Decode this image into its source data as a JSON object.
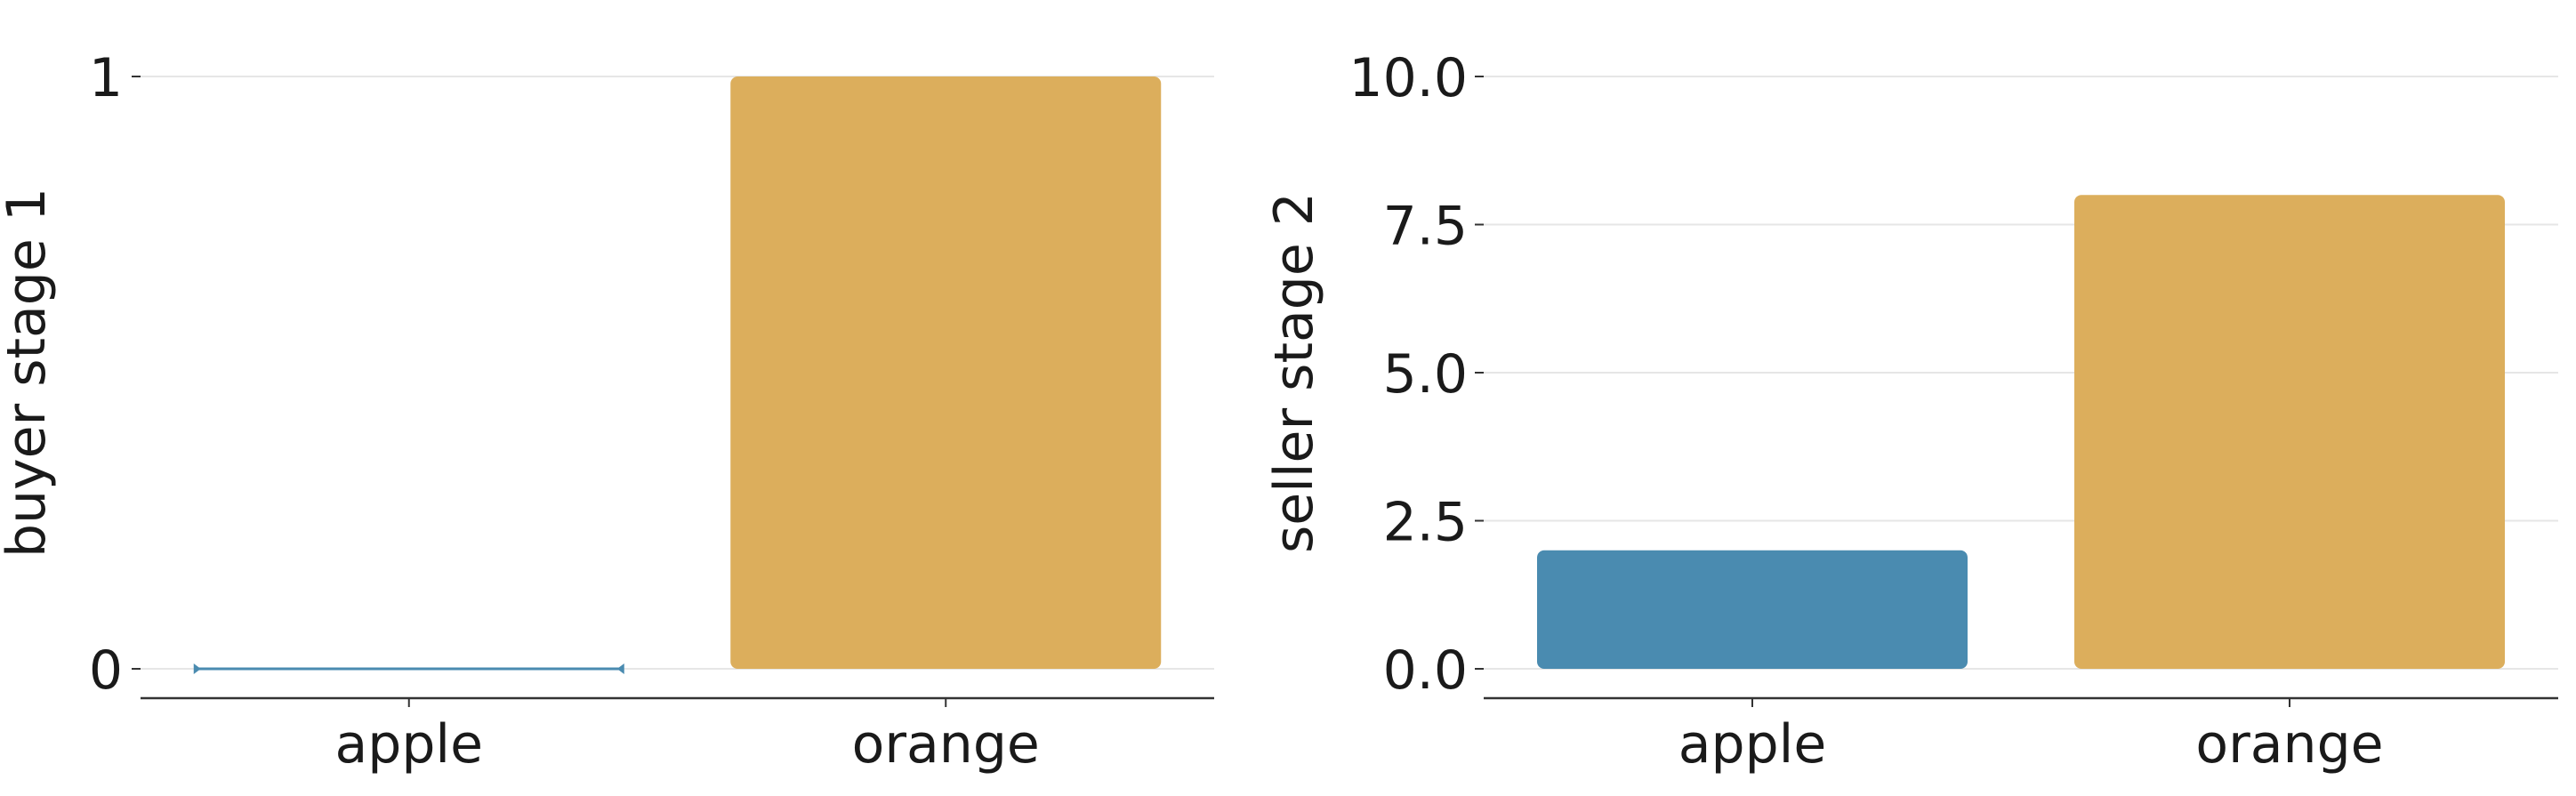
{
  "chart_data": [
    {
      "type": "bar",
      "categories": [
        "apple",
        "orange"
      ],
      "values": [
        0,
        1
      ],
      "colors": [
        "#4a8bb0",
        "#dcae5c"
      ],
      "xlabel": "",
      "ylabel": "buyer stage 1",
      "ylim": [
        0,
        1
      ],
      "yticks": [
        0,
        1
      ],
      "ytick_labels": [
        "0",
        "1"
      ],
      "grid": "horizontal"
    },
    {
      "type": "bar",
      "categories": [
        "apple",
        "orange"
      ],
      "values": [
        2,
        8
      ],
      "colors": [
        "#4a8bb0",
        "#dcae5c"
      ],
      "xlabel": "",
      "ylabel": "seller stage 2",
      "ylim": [
        0,
        10
      ],
      "yticks": [
        0,
        2.5,
        5,
        7.5,
        10
      ],
      "ytick_labels": [
        "0.0",
        "2.5",
        "5.0",
        "7.5",
        "10.0"
      ],
      "grid": "horizontal"
    }
  ]
}
